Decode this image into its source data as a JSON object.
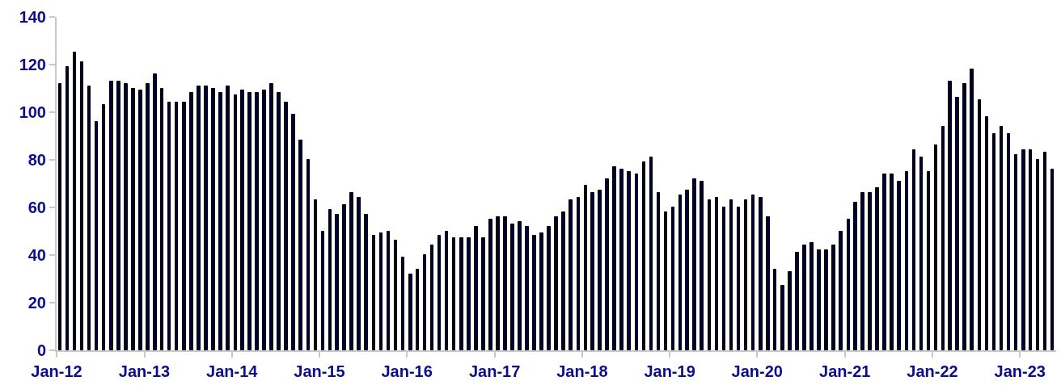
{
  "chart_data": {
    "type": "bar",
    "x": [
      "2012-01",
      "2012-02",
      "2012-03",
      "2012-04",
      "2012-05",
      "2012-06",
      "2012-07",
      "2012-08",
      "2012-09",
      "2012-10",
      "2012-11",
      "2012-12",
      "2013-01",
      "2013-02",
      "2013-03",
      "2013-04",
      "2013-05",
      "2013-06",
      "2013-07",
      "2013-08",
      "2013-09",
      "2013-10",
      "2013-11",
      "2013-12",
      "2014-01",
      "2014-02",
      "2014-03",
      "2014-04",
      "2014-05",
      "2014-06",
      "2014-07",
      "2014-08",
      "2014-09",
      "2014-10",
      "2014-11",
      "2014-12",
      "2015-01",
      "2015-02",
      "2015-03",
      "2015-04",
      "2015-05",
      "2015-06",
      "2015-07",
      "2015-08",
      "2015-09",
      "2015-10",
      "2015-11",
      "2015-12",
      "2016-01",
      "2016-02",
      "2016-03",
      "2016-04",
      "2016-05",
      "2016-06",
      "2016-07",
      "2016-08",
      "2016-09",
      "2016-10",
      "2016-11",
      "2016-12",
      "2017-01",
      "2017-02",
      "2017-03",
      "2017-04",
      "2017-05",
      "2017-06",
      "2017-07",
      "2017-08",
      "2017-09",
      "2017-10",
      "2017-11",
      "2017-12",
      "2018-01",
      "2018-02",
      "2018-03",
      "2018-04",
      "2018-05",
      "2018-06",
      "2018-07",
      "2018-08",
      "2018-09",
      "2018-10",
      "2018-11",
      "2018-12",
      "2019-01",
      "2019-02",
      "2019-03",
      "2019-04",
      "2019-05",
      "2019-06",
      "2019-07",
      "2019-08",
      "2019-09",
      "2019-10",
      "2019-11",
      "2019-12",
      "2020-01",
      "2020-02",
      "2020-03",
      "2020-04",
      "2020-05",
      "2020-06",
      "2020-07",
      "2020-08",
      "2020-09",
      "2020-10",
      "2020-11",
      "2020-12",
      "2021-01",
      "2021-02",
      "2021-03",
      "2021-04",
      "2021-05",
      "2021-06",
      "2021-07",
      "2021-08",
      "2021-09",
      "2021-10",
      "2021-11",
      "2021-12",
      "2022-01",
      "2022-02",
      "2022-03",
      "2022-04",
      "2022-05",
      "2022-06",
      "2022-07",
      "2022-08",
      "2022-09",
      "2022-10",
      "2022-11",
      "2022-12",
      "2023-01",
      "2023-02",
      "2023-03",
      "2023-04",
      "2023-05"
    ],
    "values": [
      112,
      119,
      125,
      121,
      111,
      96,
      103,
      113,
      113,
      112,
      110,
      109,
      112,
      116,
      110,
      104,
      104,
      104,
      108,
      111,
      111,
      110,
      108,
      111,
      107,
      109,
      108,
      108,
      109,
      112,
      108,
      104,
      99,
      88,
      80,
      63,
      50,
      59,
      57,
      61,
      66,
      64,
      57,
      48,
      49,
      50,
      46,
      39,
      32,
      34,
      40,
      44,
      48,
      50,
      47,
      47,
      47,
      52,
      47,
      55,
      56,
      56,
      53,
      54,
      52,
      48,
      49,
      52,
      56,
      58,
      63,
      64,
      69,
      66,
      67,
      72,
      77,
      76,
      75,
      74,
      79,
      81,
      66,
      58,
      60,
      65,
      67,
      72,
      71,
      63,
      64,
      60,
      63,
      60,
      63,
      65,
      64,
      56,
      34,
      27,
      33,
      41,
      44,
      45,
      42,
      42,
      44,
      50,
      55,
      62,
      66,
      66,
      68,
      74,
      74,
      71,
      75,
      84,
      81,
      75,
      86,
      94,
      113,
      106,
      112,
      118,
      105,
      98,
      91,
      94,
      91,
      82,
      84,
      84,
      80,
      83,
      76
    ],
    "color": "#000033",
    "xlim": [
      "2012-01",
      "2023-06"
    ],
    "xticks": [
      {
        "value": "2012-01",
        "label": "Jan-12"
      },
      {
        "value": "2013-01",
        "label": "Jan-13"
      },
      {
        "value": "2014-01",
        "label": "Jan-14"
      },
      {
        "value": "2015-01",
        "label": "Jan-15"
      },
      {
        "value": "2016-01",
        "label": "Jan-16"
      },
      {
        "value": "2017-01",
        "label": "Jan-17"
      },
      {
        "value": "2018-01",
        "label": "Jan-18"
      },
      {
        "value": "2019-01",
        "label": "Jan-19"
      },
      {
        "value": "2020-01",
        "label": "Jan-20"
      },
      {
        "value": "2021-01",
        "label": "Jan-21"
      },
      {
        "value": "2022-01",
        "label": "Jan-22"
      },
      {
        "value": "2023-01",
        "label": "Jan-23"
      }
    ],
    "ylim": [
      0,
      140
    ],
    "yticks": [
      0,
      20,
      40,
      60,
      80,
      100,
      120,
      140
    ],
    "grid": false,
    "legend": false
  }
}
